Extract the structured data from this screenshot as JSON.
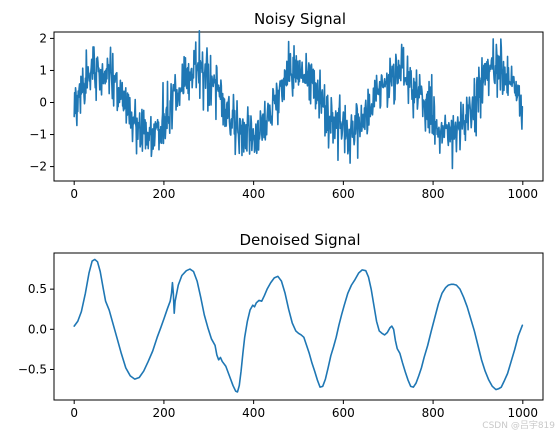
{
  "chart_data": [
    {
      "type": "line",
      "title": "Noisy Signal",
      "xlabel": "",
      "ylabel": "",
      "xlim": [
        -45,
        1045
      ],
      "ylim": [
        -2.45,
        2.2
      ],
      "xticks": [
        0,
        200,
        400,
        600,
        800,
        1000
      ],
      "yticks": [
        -2,
        -1,
        0,
        1,
        2
      ],
      "grid": false,
      "color": "#1f77b4",
      "series": [
        {
          "x_range": [
            0,
            999
          ],
          "n_points": 1000,
          "periods": 4.5,
          "amplitude": 1.0,
          "noise_sd": 0.4,
          "envelope": [
            [
              0,
              0.0
            ],
            [
              50,
              1.0
            ],
            [
              150,
              -1.0
            ],
            [
              250,
              1.0
            ],
            [
              350,
              -1.0
            ],
            [
              450,
              1.0
            ],
            [
              550,
              -1.0
            ],
            [
              650,
              1.0
            ],
            [
              750,
              -1.0
            ],
            [
              850,
              1.0
            ],
            [
              950,
              -1.0
            ],
            [
              999,
              0.0
            ]
          ]
        }
      ]
    },
    {
      "type": "line",
      "title": "Denoised Signal",
      "xlabel": "",
      "ylabel": "",
      "xlim": [
        -45,
        1045
      ],
      "ylim": [
        -0.88,
        0.95
      ],
      "xticks": [
        0,
        200,
        400,
        600,
        800,
        1000
      ],
      "yticks": [
        -0.5,
        0.0,
        0.5
      ],
      "ytick_labels": [
        "−0.5",
        "0.0",
        "0.5"
      ],
      "grid": false,
      "color": "#1f77b4",
      "series": [
        {
          "points": [
            [
              0,
              0.04
            ],
            [
              8,
              0.1
            ],
            [
              16,
              0.22
            ],
            [
              25,
              0.45
            ],
            [
              33,
              0.7
            ],
            [
              40,
              0.85
            ],
            [
              46,
              0.87
            ],
            [
              52,
              0.84
            ],
            [
              58,
              0.72
            ],
            [
              65,
              0.5
            ],
            [
              70,
              0.35
            ],
            [
              78,
              0.24
            ],
            [
              85,
              0.1
            ],
            [
              95,
              -0.1
            ],
            [
              105,
              -0.3
            ],
            [
              115,
              -0.48
            ],
            [
              125,
              -0.58
            ],
            [
              135,
              -0.62
            ],
            [
              145,
              -0.6
            ],
            [
              155,
              -0.52
            ],
            [
              165,
              -0.4
            ],
            [
              175,
              -0.27
            ],
            [
              185,
              -0.1
            ],
            [
              193,
              0.02
            ],
            [
              200,
              0.13
            ],
            [
              208,
              0.26
            ],
            [
              214,
              0.35
            ],
            [
              217,
              0.45
            ],
            [
              219,
              0.58
            ],
            [
              221,
              0.45
            ],
            [
              223,
              0.2
            ],
            [
              225,
              0.35
            ],
            [
              232,
              0.55
            ],
            [
              240,
              0.67
            ],
            [
              250,
              0.73
            ],
            [
              258,
              0.75
            ],
            [
              266,
              0.72
            ],
            [
              274,
              0.6
            ],
            [
              282,
              0.4
            ],
            [
              290,
              0.18
            ],
            [
              298,
              0.02
            ],
            [
              306,
              -0.12
            ],
            [
              314,
              -0.2
            ],
            [
              318,
              -0.32
            ],
            [
              322,
              -0.38
            ],
            [
              326,
              -0.35
            ],
            [
              330,
              -0.4
            ],
            [
              338,
              -0.46
            ],
            [
              346,
              -0.58
            ],
            [
              354,
              -0.7
            ],
            [
              360,
              -0.77
            ],
            [
              364,
              -0.78
            ],
            [
              368,
              -0.7
            ],
            [
              372,
              -0.52
            ],
            [
              376,
              -0.3
            ],
            [
              380,
              -0.1
            ],
            [
              386,
              0.1
            ],
            [
              392,
              0.24
            ],
            [
              398,
              0.3
            ],
            [
              402,
              0.28
            ],
            [
              406,
              0.33
            ],
            [
              412,
              0.36
            ],
            [
              418,
              0.35
            ],
            [
              424,
              0.42
            ],
            [
              430,
              0.5
            ],
            [
              438,
              0.58
            ],
            [
              446,
              0.64
            ],
            [
              454,
              0.66
            ],
            [
              462,
              0.6
            ],
            [
              470,
              0.45
            ],
            [
              478,
              0.25
            ],
            [
              486,
              0.08
            ],
            [
              494,
              -0.02
            ],
            [
              500,
              -0.05
            ],
            [
              506,
              -0.07
            ],
            [
              512,
              -0.1
            ],
            [
              518,
              -0.2
            ],
            [
              524,
              -0.3
            ],
            [
              530,
              -0.42
            ],
            [
              536,
              -0.52
            ],
            [
              542,
              -0.63
            ],
            [
              548,
              -0.72
            ],
            [
              554,
              -0.71
            ],
            [
              560,
              -0.62
            ],
            [
              566,
              -0.48
            ],
            [
              572,
              -0.33
            ],
            [
              578,
              -0.22
            ],
            [
              584,
              -0.1
            ],
            [
              590,
              0.05
            ],
            [
              596,
              0.18
            ],
            [
              602,
              0.3
            ],
            [
              610,
              0.45
            ],
            [
              618,
              0.55
            ],
            [
              626,
              0.62
            ],
            [
              634,
              0.7
            ],
            [
              642,
              0.74
            ],
            [
              650,
              0.73
            ],
            [
              656,
              0.65
            ],
            [
              662,
              0.5
            ],
            [
              668,
              0.3
            ],
            [
              674,
              0.1
            ],
            [
              680,
              -0.02
            ],
            [
              686,
              -0.05
            ],
            [
              692,
              -0.07
            ],
            [
              698,
              -0.04
            ],
            [
              704,
              0.02
            ],
            [
              708,
              0.04
            ],
            [
              712,
              0.0
            ],
            [
              716,
              -0.14
            ],
            [
              720,
              -0.24
            ],
            [
              726,
              -0.3
            ],
            [
              732,
              -0.42
            ],
            [
              738,
              -0.53
            ],
            [
              744,
              -0.63
            ],
            [
              750,
              -0.71
            ],
            [
              756,
              -0.72
            ],
            [
              762,
              -0.67
            ],
            [
              768,
              -0.58
            ],
            [
              774,
              -0.48
            ],
            [
              780,
              -0.35
            ],
            [
              788,
              -0.2
            ],
            [
              796,
              -0.02
            ],
            [
              804,
              0.15
            ],
            [
              812,
              0.32
            ],
            [
              820,
              0.45
            ],
            [
              828,
              0.52
            ],
            [
              834,
              0.55
            ],
            [
              840,
              0.56
            ],
            [
              846,
              0.56
            ],
            [
              852,
              0.55
            ],
            [
              860,
              0.5
            ],
            [
              868,
              0.4
            ],
            [
              876,
              0.28
            ],
            [
              884,
              0.13
            ],
            [
              892,
              -0.02
            ],
            [
              900,
              -0.2
            ],
            [
              908,
              -0.38
            ],
            [
              916,
              -0.52
            ],
            [
              924,
              -0.63
            ],
            [
              932,
              -0.71
            ],
            [
              940,
              -0.75
            ],
            [
              946,
              -0.74
            ],
            [
              952,
              -0.72
            ],
            [
              958,
              -0.65
            ],
            [
              966,
              -0.55
            ],
            [
              974,
              -0.4
            ],
            [
              982,
              -0.25
            ],
            [
              990,
              -0.08
            ],
            [
              999,
              0.05
            ]
          ]
        }
      ]
    }
  ],
  "watermark": "CSDN @吕宇819"
}
